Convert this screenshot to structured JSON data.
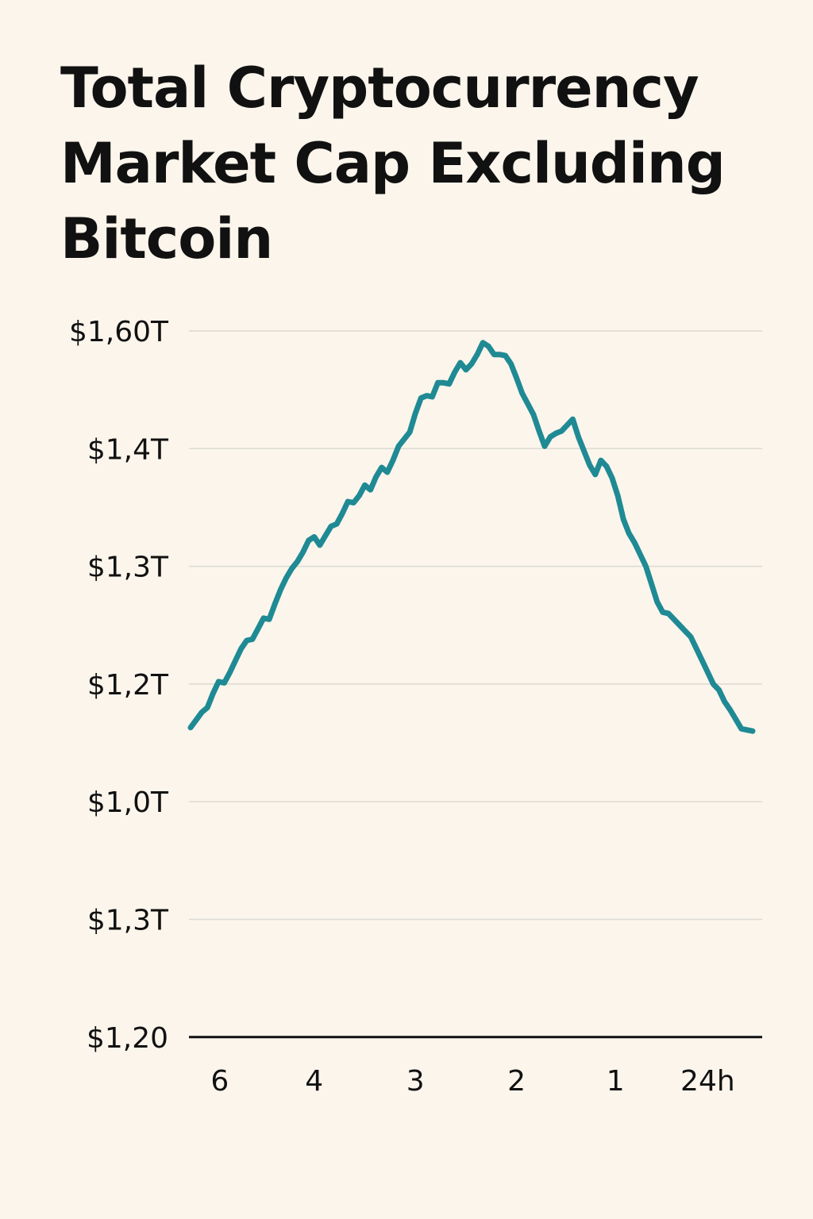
{
  "title_lines": [
    "Total Cryptocurrency",
    "Market Cap Excluding",
    "Bitcoin"
  ],
  "colors": {
    "background": "#fbf5ec",
    "line": "#1f8a94",
    "grid": "#dcdad2",
    "axis": "#111111",
    "text": "#111111"
  },
  "chart_data": {
    "type": "line",
    "title": "Total Cryptocurrency Market Cap Excluding Bitcoin",
    "xlabel": "",
    "ylabel": "",
    "y_tick_labels": [
      "$1,60T",
      "$1,4T",
      "$1,3T",
      "$1,2T",
      "$1,0T",
      "$1,3T",
      "$1,20"
    ],
    "x_tick_labels": [
      "6",
      "4",
      "3",
      "2",
      "1",
      "24h"
    ],
    "x_tick_positions": [
      0.052,
      0.22,
      0.4,
      0.58,
      0.756,
      0.92
    ],
    "grid": true,
    "legend": "none",
    "note": "y-axis labels are non-monotonic as printed; data values are read against the gridlines (0 = bottom axis, 6 = top gridline)",
    "series": [
      {
        "x": [
          0,
          0.02,
          0.03,
          0.04,
          0.05,
          0.06,
          0.07,
          0.08,
          0.09,
          0.1,
          0.11,
          0.12,
          0.13,
          0.14,
          0.15,
          0.16,
          0.17,
          0.18,
          0.19,
          0.2,
          0.21,
          0.22,
          0.23,
          0.24,
          0.25,
          0.26,
          0.27,
          0.28,
          0.29,
          0.3,
          0.31,
          0.32,
          0.33,
          0.34,
          0.35,
          0.36,
          0.37,
          0.38,
          0.39,
          0.4,
          0.41,
          0.42,
          0.43,
          0.44,
          0.45,
          0.46,
          0.47,
          0.48,
          0.49,
          0.5,
          0.51,
          0.52,
          0.53,
          0.54,
          0.55,
          0.56,
          0.57,
          0.58,
          0.59,
          0.6,
          0.61,
          0.62,
          0.63,
          0.64,
          0.65,
          0.66,
          0.67,
          0.68,
          0.69,
          0.7,
          0.71,
          0.72,
          0.73,
          0.74,
          0.75,
          0.76,
          0.77,
          0.78,
          0.79,
          0.8,
          0.81,
          0.82,
          0.83,
          0.84,
          0.85,
          0.86,
          0.87,
          0.88,
          0.89,
          0.9,
          0.91,
          0.92,
          0.93,
          0.94,
          0.95,
          0.96,
          0.97,
          0.98,
          1.0
        ],
        "y": [
          2.63,
          2.76,
          2.8,
          2.92,
          3.02,
          3.01,
          3.1,
          3.2,
          3.3,
          3.37,
          3.38,
          3.47,
          3.56,
          3.55,
          3.68,
          3.8,
          3.9,
          3.98,
          4.04,
          4.12,
          4.22,
          4.25,
          4.18,
          4.26,
          4.34,
          4.36,
          4.45,
          4.55,
          4.54,
          4.6,
          4.69,
          4.65,
          4.76,
          4.84,
          4.8,
          4.9,
          5.02,
          5.08,
          5.14,
          5.3,
          5.43,
          5.45,
          5.44,
          5.56,
          5.56,
          5.55,
          5.65,
          5.73,
          5.67,
          5.72,
          5.8,
          5.9,
          5.87,
          5.8,
          5.8,
          5.79,
          5.72,
          5.6,
          5.47,
          5.38,
          5.29,
          5.15,
          5.02,
          5.1,
          5.13,
          5.15,
          5.2,
          5.25,
          5.1,
          4.98,
          4.86,
          4.78,
          4.9,
          4.85,
          4.75,
          4.6,
          4.4,
          4.28,
          4.2,
          4.1,
          4.0,
          3.85,
          3.7,
          3.61,
          3.6,
          3.55,
          3.5,
          3.45,
          3.4,
          3.3,
          3.2,
          3.1,
          3.0,
          2.95,
          2.85,
          2.78,
          2.7,
          2.62,
          2.6
        ],
        "y_points_fine": null
      }
    ]
  }
}
